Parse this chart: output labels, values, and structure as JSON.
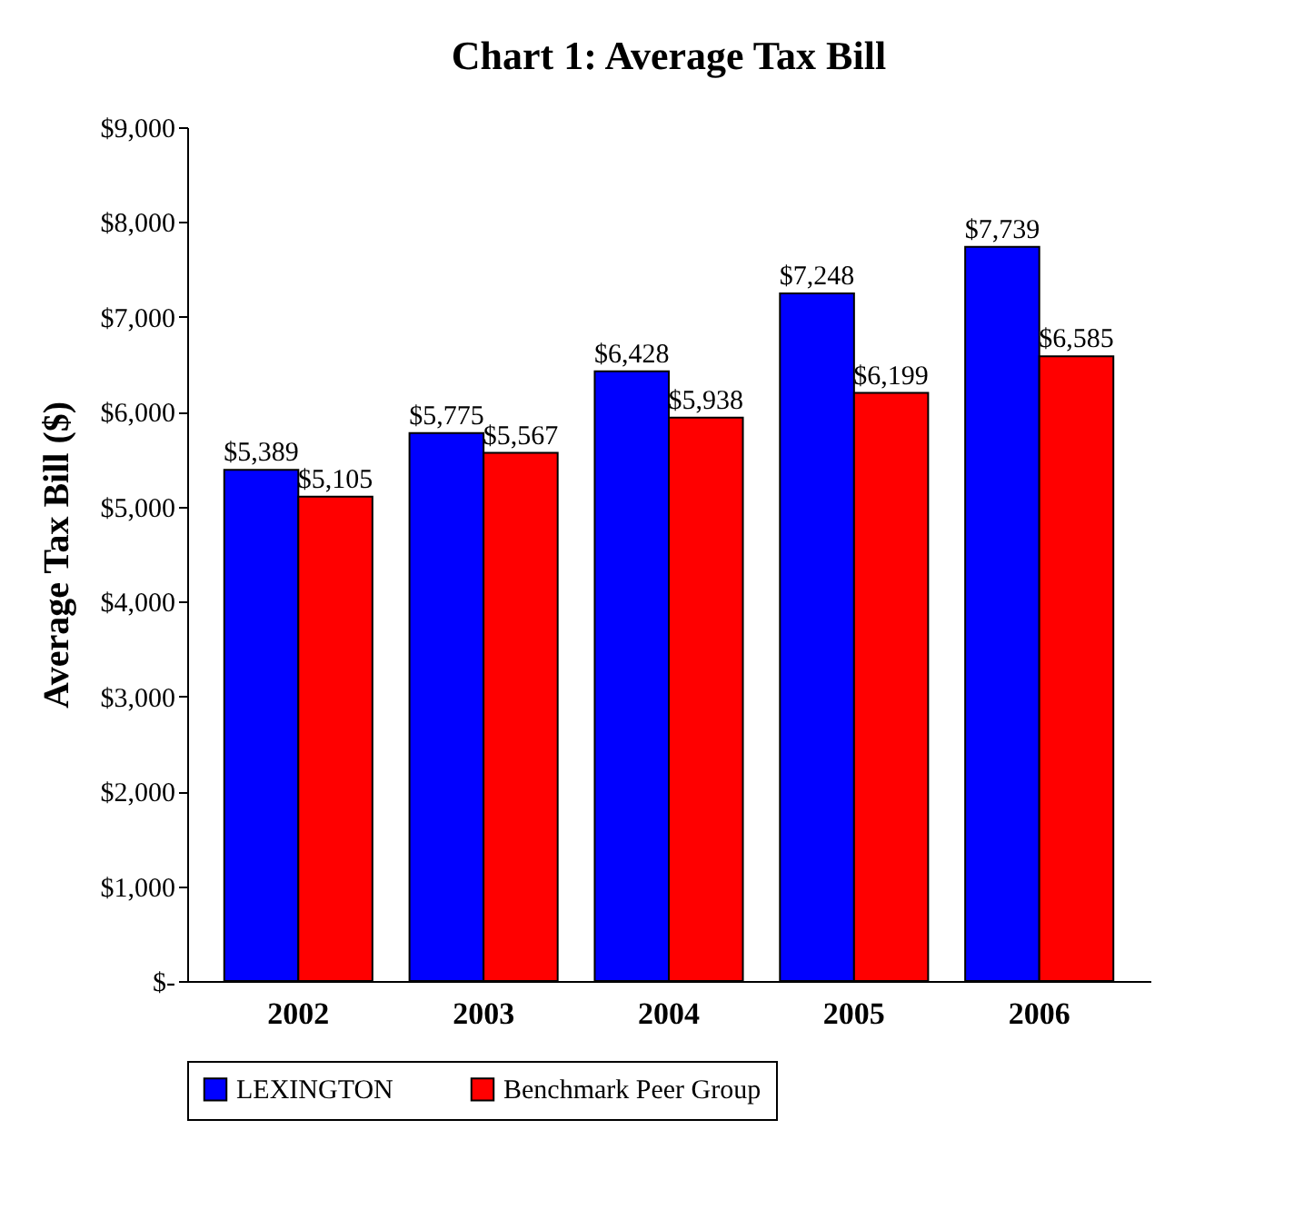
{
  "chart_data": {
    "type": "bar",
    "title": "Chart 1: Average Tax Bill",
    "ylabel": "Average Tax Bill ($)",
    "categories": [
      "2002",
      "2003",
      "2004",
      "2005",
      "2006"
    ],
    "series": [
      {
        "name": "LEXINGTON",
        "color": "#0000ff",
        "values": [
          5389,
          5775,
          6428,
          7248,
          7739
        ],
        "value_labels": [
          "$5,389",
          "$5,775",
          "$6,428",
          "$7,248",
          "$7,739"
        ]
      },
      {
        "name": "Benchmark Peer Group",
        "color": "#ff0000",
        "values": [
          5105,
          5567,
          5938,
          6199,
          6585
        ],
        "value_labels": [
          "$5,105",
          "$5,567",
          "$5,938",
          "$6,199",
          "$6,585"
        ]
      }
    ],
    "ylim": [
      0,
      9000
    ],
    "yticks": [
      {
        "value": 0,
        "label": "$-"
      },
      {
        "value": 1000,
        "label": "$1,000"
      },
      {
        "value": 2000,
        "label": "$2,000"
      },
      {
        "value": 3000,
        "label": "$3,000"
      },
      {
        "value": 4000,
        "label": "$4,000"
      },
      {
        "value": 5000,
        "label": "$5,000"
      },
      {
        "value": 6000,
        "label": "$6,000"
      },
      {
        "value": 7000,
        "label": "$7,000"
      },
      {
        "value": 8000,
        "label": "$8,000"
      },
      {
        "value": 9000,
        "label": "$9,000"
      }
    ],
    "grid": false,
    "legend": "bottom"
  }
}
